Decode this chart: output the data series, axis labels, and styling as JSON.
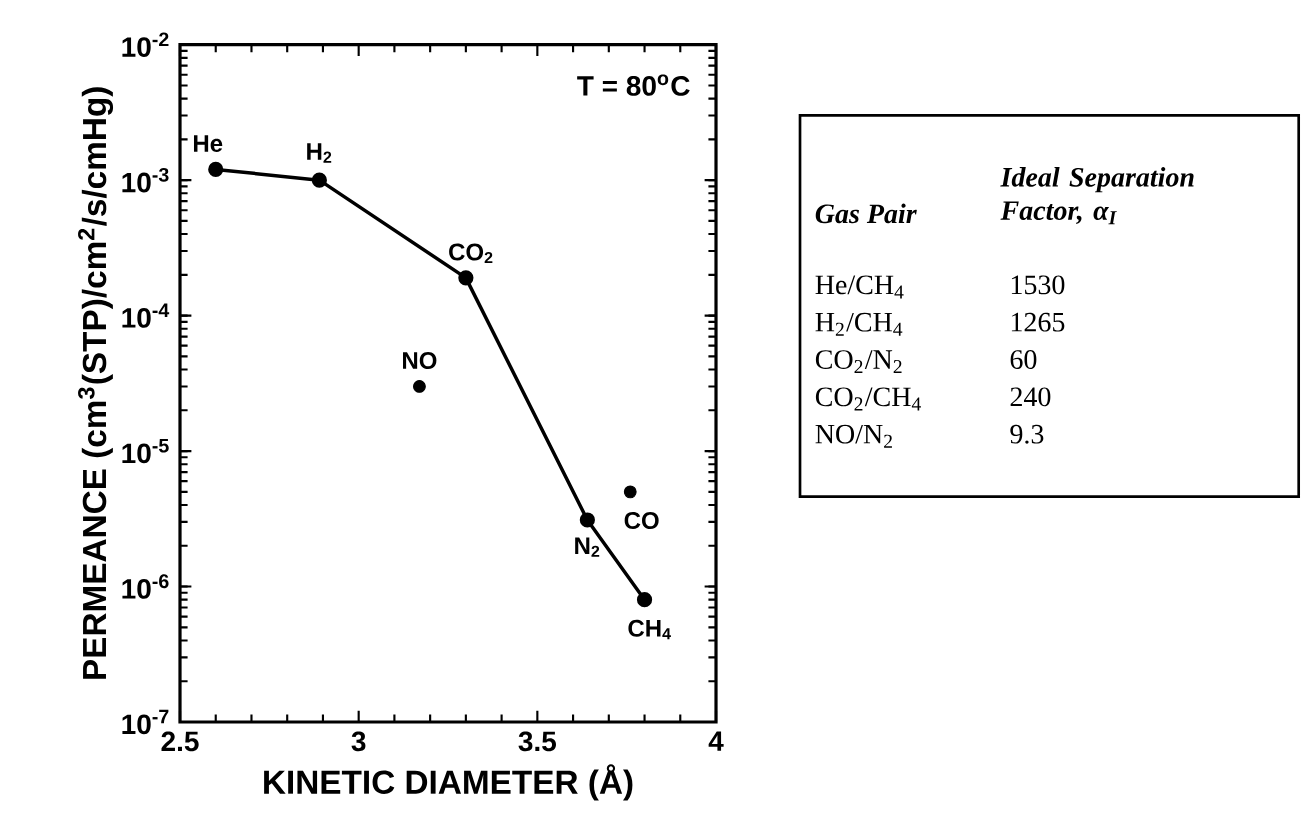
{
  "chart_data": {
    "type": "line",
    "xlabel": "KINETIC DIAMETER (Å)",
    "ylabel": "PERMEANCE (cm$^{3}$(STP)/cm$^{2}$/s/cmHg)",
    "xlim": [
      2.5,
      4
    ],
    "xticks": [
      2.5,
      3,
      3.5,
      4
    ],
    "ylim": [
      1e-07,
      0.01
    ],
    "log": "y",
    "yticks": [
      {
        "value": 1e-07,
        "label": "10$^{-7}$"
      },
      {
        "value": 1e-06,
        "label": "10$^{-6}$"
      },
      {
        "value": 1e-05,
        "label": "10$^{-5}$"
      },
      {
        "value": 0.0001,
        "label": "10$^{-4}$"
      },
      {
        "value": 0.001,
        "label": "10$^{-3}$"
      },
      {
        "value": 0.01,
        "label": "10$^{-2}$"
      }
    ],
    "marker": "circle",
    "line_style": "solid",
    "series": [
      {
        "color": "#000000",
        "x": [
          2.6,
          2.89,
          3.3,
          3.64,
          3.8
        ],
        "values": [
          0.0012,
          0.001,
          0.00019,
          3.1e-06,
          8e-07
        ]
      },
      {
        "type": "scatter",
        "color": "#000000",
        "x": [
          3.17,
          3.76
        ],
        "values": [
          3e-05,
          5e-06
        ]
      }
    ],
    "annotations": [
      {
        "text": "He",
        "x": 2.6,
        "y": 0.0012
      },
      {
        "text": "H$_{2}$",
        "x": 2.89,
        "y": 0.001
      },
      {
        "text": "CO$_{2}$",
        "x": 3.3,
        "y": 0.00019
      },
      {
        "text": "NO",
        "x": 3.17,
        "y": 3e-05
      },
      {
        "text": "N$_{2}$",
        "x": 3.64,
        "y": 3.1e-06
      },
      {
        "text": "CO",
        "x": 3.76,
        "y": 5e-06
      },
      {
        "text": "CH$_{4}$",
        "x": 3.8,
        "y": 8e-07
      },
      "T = 80$^{o}$C",
      "Gas Pair",
      "Ideal Separation Factor, α$_{I}$",
      "He/CH$_{4}$",
      "1530",
      "H$_{2}$/CH$_{4}$",
      "1265",
      "CO$_{2}$/N$_{2}$",
      "60",
      "CO$_{2}$/CH$_{4}$",
      "240",
      "NO/N$_{2}$",
      "9.3"
    ]
  }
}
